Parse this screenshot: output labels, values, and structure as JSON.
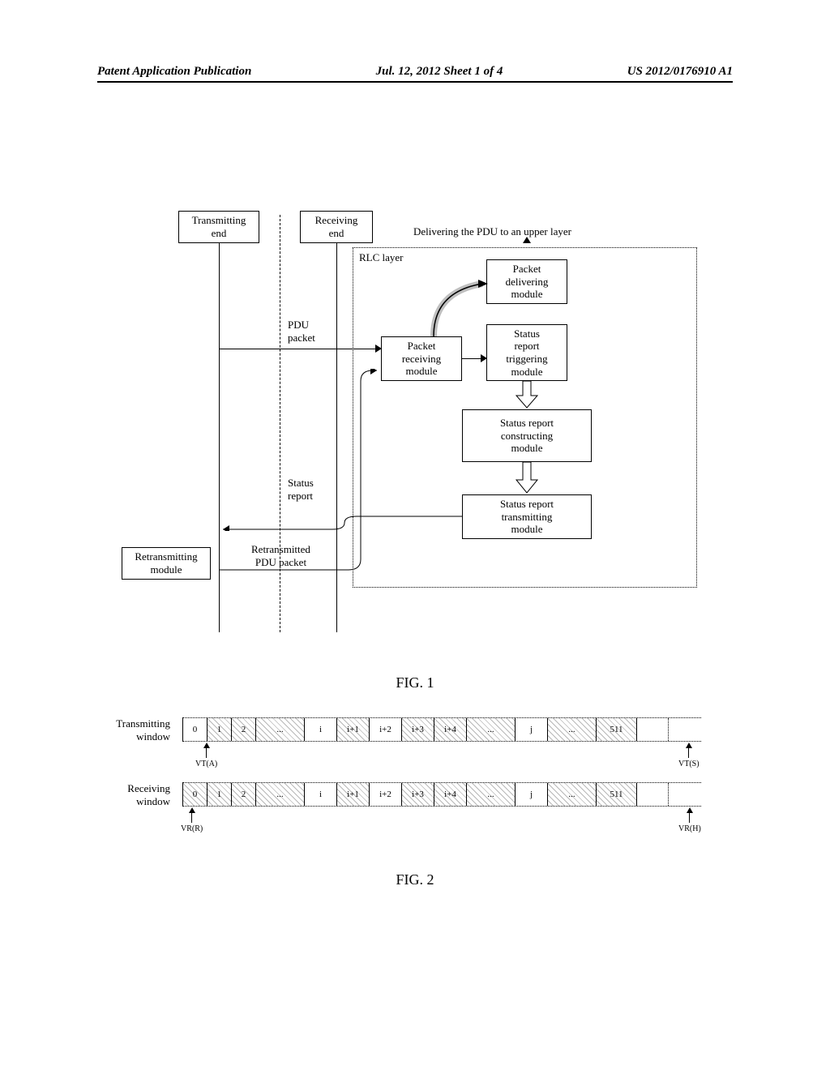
{
  "header": {
    "left": "Patent Application Publication",
    "center": "Jul. 12, 2012  Sheet 1 of 4",
    "right": "US 2012/0176910 A1"
  },
  "fig1": {
    "transmitting_end": "Transmitting\nend",
    "receiving_end": "Receiving\nend",
    "retransmitting_module": "Retransmitting\nmodule",
    "rlc_layer": "RLC layer",
    "packet_receiving": "Packet\nreceiving\nmodule",
    "packet_delivering": "Packet\ndelivering\nmodule",
    "status_triggering": "Status\nreport\ntriggering\nmodule",
    "status_constructing": "Status report\nconstructing\nmodule",
    "status_transmitting": "Status report\ntransmitting\nmodule",
    "delivering_text": "Delivering the PDU to an upper layer",
    "pdu_packet": "PDU\npacket",
    "status_report": "Status\nreport",
    "retransmitted_pdu": "Retransmitted\nPDU packet",
    "label": "FIG. 1"
  },
  "fig2": {
    "transmitting_window": "Transmitting\nwindow",
    "receiving_window": "Receiving\nwindow",
    "cells_tx": [
      "0",
      "1",
      "2",
      "...",
      "i",
      "i+1",
      "i+2",
      "i+3",
      "i+4",
      "...",
      "j",
      "...",
      "511",
      ""
    ],
    "cells_rx": [
      "0",
      "1",
      "2",
      "...",
      "i",
      "i+1",
      "i+2",
      "i+3",
      "i+4",
      "...",
      "j",
      "...",
      "511",
      ""
    ],
    "hatched_tx": [
      false,
      true,
      true,
      true,
      false,
      true,
      false,
      true,
      true,
      true,
      false,
      true,
      true,
      false
    ],
    "hatched_rx": [
      true,
      true,
      true,
      true,
      false,
      true,
      false,
      true,
      true,
      true,
      false,
      true,
      true,
      false
    ],
    "vt_a": "VT(A)",
    "vt_s": "VT(S)",
    "vr_r": "VR(R)",
    "vr_h": "VR(H)",
    "label": "FIG. 2"
  },
  "colors": {
    "line": "#000000",
    "bg": "#ffffff"
  }
}
